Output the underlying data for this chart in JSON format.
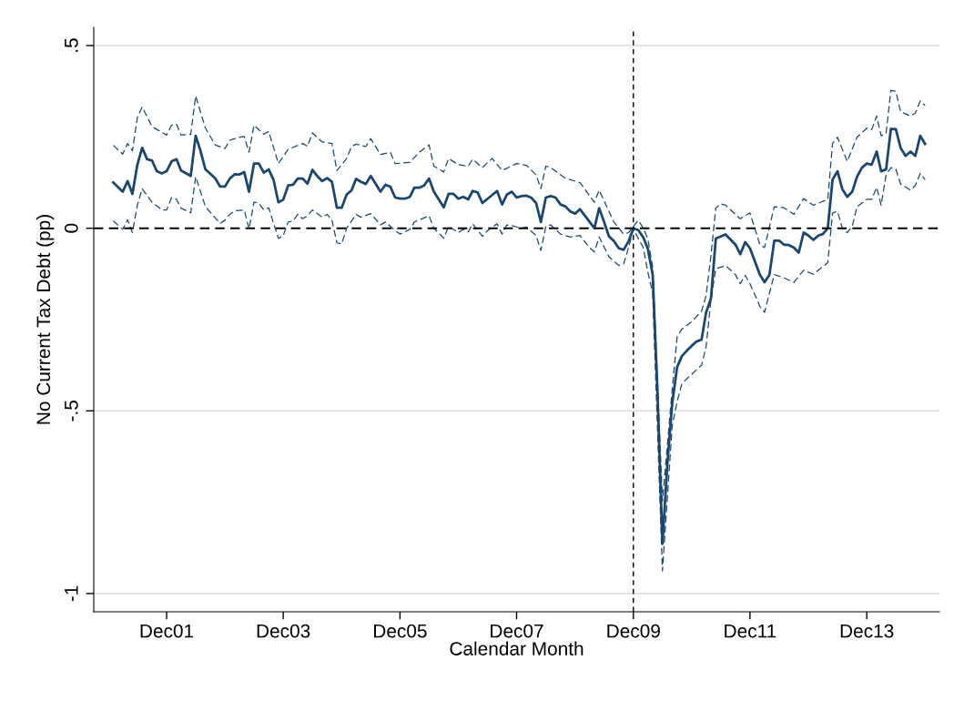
{
  "chart_data": {
    "type": "line",
    "xlabel": "Calendar Month",
    "ylabel": "No Current Tax Debt (pp)",
    "xlim": [
      "2000-09",
      "2015-03"
    ],
    "ylim": [
      -1.05,
      0.55
    ],
    "xticks": [
      {
        "value": "2001-12",
        "label": "Dec01"
      },
      {
        "value": "2003-12",
        "label": "Dec03"
      },
      {
        "value": "2005-12",
        "label": "Dec05"
      },
      {
        "value": "2007-12",
        "label": "Dec07"
      },
      {
        "value": "2009-12",
        "label": "Dec09"
      },
      {
        "value": "2011-12",
        "label": "Dec11"
      },
      {
        "value": "2013-12",
        "label": "Dec13"
      }
    ],
    "yticks": [
      {
        "value": -1,
        "label": "-1"
      },
      {
        "value": -0.5,
        "label": "-.5"
      },
      0,
      {
        "value": 0.5,
        "label": ".5"
      }
    ],
    "grid": "y",
    "legend": false,
    "ref_lines": [
      {
        "axis": "y",
        "value": 0,
        "color": "#000000",
        "line_style": "dashed"
      },
      {
        "axis": "x",
        "value": "2009-12",
        "color": "#000000",
        "line_style": "dashed"
      }
    ],
    "series": [
      {
        "color": "#1a476f",
        "line_style": "solid",
        "x": [
          "2001-01",
          "2001-03",
          "2001-04",
          "2001-05",
          "2001-06",
          "2001-07",
          "2001-08",
          "2001-09",
          "2001-10",
          "2001-11",
          "2001-12",
          "2002-01",
          "2002-02",
          "2002-03",
          "2002-05",
          "2002-06",
          "2002-07",
          "2002-08",
          "2002-10",
          "2002-11",
          "2002-12",
          "2003-01",
          "2003-02",
          "2003-03",
          "2003-04",
          "2003-05",
          "2003-06",
          "2003-07",
          "2003-08",
          "2003-09",
          "2003-10",
          "2003-11",
          "2003-12",
          "2004-01",
          "2004-02",
          "2004-03",
          "2004-04",
          "2004-05",
          "2004-06",
          "2004-07",
          "2004-08",
          "2004-09",
          "2004-10",
          "2004-11",
          "2004-12",
          "2005-01",
          "2005-02",
          "2005-03",
          "2005-04",
          "2005-05",
          "2005-06",
          "2005-08",
          "2005-09",
          "2005-10",
          "2005-11",
          "2005-12",
          "2006-01",
          "2006-02",
          "2006-03",
          "2006-04",
          "2006-05",
          "2006-06",
          "2006-07",
          "2006-09",
          "2006-10",
          "2006-11",
          "2006-12",
          "2007-01",
          "2007-02",
          "2007-03",
          "2007-04",
          "2007-05",
          "2007-08",
          "2007-09",
          "2007-10",
          "2007-11",
          "2007-12",
          "2008-01",
          "2008-02",
          "2008-03",
          "2008-04",
          "2008-05",
          "2008-06",
          "2008-07",
          "2008-08",
          "2008-09",
          "2008-10",
          "2008-11",
          "2008-12",
          "2009-01",
          "2009-04",
          "2009-05",
          "2009-06",
          "2009-07",
          "2009-08",
          "2009-09",
          "2009-10",
          "2009-11",
          "2009-12",
          "2010-01",
          "2010-02",
          "2010-03",
          "2010-04",
          "2010-05",
          "2010-06",
          "2010-07",
          "2010-08",
          "2010-09",
          "2010-10",
          "2010-11",
          "2010-12",
          "2011-01",
          "2011-02",
          "2011-03",
          "2011-04",
          "2011-05",
          "2011-07",
          "2011-09",
          "2011-10",
          "2011-11",
          "2011-12",
          "2012-02",
          "2012-03",
          "2012-04",
          "2012-05",
          "2012-06",
          "2012-07",
          "2012-08",
          "2012-09",
          "2012-10",
          "2012-11",
          "2012-12",
          "2013-01",
          "2013-02",
          "2013-03",
          "2013-04",
          "2013-05",
          "2013-06",
          "2013-07",
          "2013-08",
          "2013-09",
          "2013-10",
          "2013-11",
          "2013-12",
          "2014-01",
          "2014-02",
          "2014-03",
          "2014-04",
          "2014-05",
          "2014-06",
          "2014-07",
          "2014-08",
          "2014-09",
          "2014-10",
          "2014-11",
          "2014-12"
        ],
        "values": [
          0.125,
          0.1,
          0.129,
          0.094,
          0.174,
          0.22,
          0.189,
          0.185,
          0.156,
          0.15,
          0.156,
          0.183,
          0.189,
          0.158,
          0.143,
          0.253,
          0.212,
          0.161,
          0.137,
          0.114,
          0.114,
          0.136,
          0.148,
          0.147,
          0.154,
          0.1,
          0.177,
          0.177,
          0.152,
          0.161,
          0.133,
          0.071,
          0.078,
          0.117,
          0.119,
          0.136,
          0.136,
          0.122,
          0.16,
          0.143,
          0.129,
          0.137,
          0.127,
          0.056,
          0.056,
          0.092,
          0.104,
          0.135,
          0.127,
          0.121,
          0.143,
          0.1,
          0.119,
          0.114,
          0.084,
          0.081,
          0.081,
          0.086,
          0.111,
          0.111,
          0.117,
          0.136,
          0.1,
          0.057,
          0.094,
          0.094,
          0.081,
          0.086,
          0.079,
          0.102,
          0.098,
          0.069,
          0.102,
          0.065,
          0.092,
          0.1,
          0.084,
          0.088,
          0.089,
          0.084,
          0.069,
          0.017,
          0.084,
          0.088,
          0.084,
          0.065,
          0.06,
          0.046,
          0.04,
          0.052,
          0,
          0.055,
          0.017,
          -0.022,
          -0.035,
          -0.055,
          -0.059,
          -0.036,
          0,
          -0.005,
          -0.025,
          -0.055,
          -0.127,
          -0.45,
          -0.864,
          -0.65,
          -0.48,
          -0.38,
          -0.35,
          -0.335,
          -0.322,
          -0.31,
          -0.305,
          -0.231,
          -0.192,
          -0.028,
          -0.017,
          -0.045,
          -0.071,
          -0.038,
          -0.055,
          -0.127,
          -0.148,
          -0.127,
          -0.034,
          -0.034,
          -0.045,
          -0.046,
          -0.053,
          -0.067,
          -0.012,
          -0.02,
          -0.032,
          -0.02,
          -0.016,
          0,
          0.133,
          0.156,
          0.107,
          0.086,
          0.1,
          0.141,
          0.166,
          0.177,
          0.174,
          0.21,
          0.156,
          0.161,
          0.272,
          0.271,
          0.22,
          0.198,
          0.21,
          0.198,
          0.253,
          0.231
        ]
      },
      {
        "color": "#1a476f",
        "line_style": "dashed",
        "x": [
          "2001-01",
          "2001-03",
          "2001-04",
          "2001-05",
          "2001-06",
          "2001-07",
          "2001-09",
          "2001-12",
          "2002-01",
          "2002-02",
          "2002-03",
          "2002-05",
          "2002-06",
          "2002-08",
          "2002-10",
          "2002-12",
          "2003-01",
          "2003-03",
          "2003-04",
          "2003-05",
          "2003-06",
          "2003-08",
          "2003-09",
          "2003-11",
          "2004-01",
          "2004-04",
          "2004-05",
          "2004-06",
          "2004-08",
          "2004-10",
          "2004-11",
          "2005-01",
          "2005-02",
          "2005-03",
          "2005-05",
          "2005-06",
          "2005-08",
          "2005-10",
          "2005-11",
          "2006-02",
          "2006-04",
          "2006-06",
          "2006-07",
          "2006-09",
          "2006-10",
          "2006-12",
          "2007-02",
          "2007-03",
          "2007-05",
          "2007-07",
          "2007-09",
          "2007-12",
          "2008-02",
          "2008-04",
          "2008-05",
          "2008-06",
          "2008-07",
          "2008-10",
          "2009-01",
          "2009-04",
          "2009-05",
          "2009-08",
          "2009-10",
          "2009-11",
          "2010-01",
          "2010-02",
          "2010-03",
          "2010-04",
          "2010-06",
          "2010-08",
          "2010-09",
          "2010-10",
          "2010-12",
          "2011-02",
          "2011-03",
          "2011-04",
          "2011-05",
          "2011-06",
          "2011-07",
          "2011-10",
          "2011-12",
          "2012-02",
          "2012-03",
          "2012-05",
          "2012-07",
          "2012-09",
          "2012-11",
          "2013-01",
          "2013-04",
          "2013-05",
          "2013-06",
          "2013-08",
          "2013-10",
          "2013-12",
          "2014-01",
          "2014-02",
          "2014-03",
          "2014-04",
          "2014-05",
          "2014-06",
          "2014-07",
          "2014-09",
          "2014-10",
          "2014-11",
          "2014-12"
        ],
        "values": [
          0.227,
          0.203,
          0.232,
          0.212,
          0.303,
          0.332,
          0.278,
          0.255,
          0.282,
          0.285,
          0.255,
          0.257,
          0.362,
          0.274,
          0.228,
          0.218,
          0.241,
          0.249,
          0.251,
          0.208,
          0.282,
          0.257,
          0.265,
          0.177,
          0.216,
          0.232,
          0.224,
          0.261,
          0.236,
          0.232,
          0.158,
          0.191,
          0.224,
          0.23,
          0.224,
          0.245,
          0.202,
          0.208,
          0.177,
          0.18,
          0.208,
          0.228,
          0.17,
          0.154,
          0.191,
          0.174,
          0.17,
          0.189,
          0.166,
          0.191,
          0.158,
          0.177,
          0.172,
          0.146,
          0.108,
          0.17,
          0.166,
          0.137,
          0.125,
          0.071,
          0.104,
          0.017,
          -0.016,
          -0.012,
          0.022,
          0,
          -0.028,
          -0.107,
          -0.747,
          -0.442,
          -0.297,
          -0.276,
          -0.256,
          -0.227,
          -0.185,
          -0.074,
          0.055,
          0.067,
          0.063,
          0.026,
          0.042,
          -0.045,
          -0.053,
          0.059,
          0.056,
          0.038,
          0.081,
          0.063,
          0.079,
          0.232,
          0.249,
          0.183,
          0.249,
          0.274,
          0.27,
          0.307,
          0.253,
          0.26,
          0.377,
          0.375,
          0.319,
          0.307,
          0.315,
          0.348,
          0.336
        ]
      },
      {
        "color": "#1a476f",
        "line_style": "dashed",
        "x": [
          "2001-01",
          "2001-03",
          "2001-04",
          "2001-05",
          "2001-06",
          "2001-07",
          "2001-09",
          "2001-11",
          "2001-12",
          "2002-01",
          "2002-02",
          "2002-03",
          "2002-05",
          "2002-06",
          "2002-08",
          "2002-11",
          "2002-12",
          "2003-01",
          "2003-02",
          "2003-04",
          "2003-05",
          "2003-06",
          "2003-07",
          "2003-08",
          "2003-09",
          "2003-11",
          "2003-12",
          "2004-01",
          "2004-02",
          "2004-03",
          "2004-04",
          "2004-05",
          "2004-06",
          "2004-08",
          "2004-09",
          "2004-10",
          "2004-11",
          "2004-12",
          "2005-01",
          "2005-03",
          "2005-04",
          "2005-06",
          "2005-08",
          "2005-09",
          "2005-11",
          "2005-12",
          "2006-02",
          "2006-03",
          "2006-06",
          "2006-07",
          "2006-09",
          "2006-10",
          "2006-12",
          "2007-01",
          "2007-02",
          "2007-03",
          "2007-05",
          "2007-06",
          "2007-08",
          "2007-09",
          "2007-10",
          "2007-11",
          "2008-01",
          "2008-02",
          "2008-04",
          "2008-05",
          "2008-06",
          "2008-07",
          "2008-09",
          "2008-11",
          "2009-01",
          "2009-03",
          "2009-04",
          "2009-05",
          "2009-07",
          "2009-09",
          "2009-10",
          "2009-11",
          "2009-12",
          "2010-02",
          "2010-03",
          "2010-04",
          "2010-06",
          "2010-08",
          "2010-09",
          "2010-10",
          "2010-12",
          "2011-02",
          "2011-03",
          "2011-04",
          "2011-05",
          "2011-07",
          "2011-09",
          "2011-10",
          "2011-11",
          "2011-12",
          "2012-02",
          "2012-03",
          "2012-05",
          "2012-07",
          "2012-09",
          "2012-11",
          "2013-01",
          "2013-04",
          "2013-05",
          "2013-06",
          "2013-07",
          "2013-08",
          "2013-09",
          "2013-10",
          "2013-12",
          "2014-01",
          "2014-02",
          "2014-03",
          "2014-04",
          "2014-05",
          "2014-06",
          "2014-07",
          "2014-09",
          "2014-10",
          "2014-11",
          "2014-12"
        ],
        "values": [
          0.02,
          -0.003,
          0.023,
          -0.012,
          0.063,
          0.108,
          0.071,
          0.05,
          0.05,
          0.084,
          0.079,
          0.055,
          0.042,
          0.141,
          0.059,
          0.013,
          0.022,
          0.038,
          0.048,
          0.05,
          -0.002,
          0.071,
          0.069,
          0.05,
          0.056,
          -0.028,
          -0.02,
          0.017,
          0.02,
          0.038,
          0.026,
          0.034,
          0.05,
          0.03,
          0.038,
          0.022,
          -0.04,
          -0.043,
          0,
          0.038,
          0.03,
          0.04,
          0.009,
          0.017,
          -0.007,
          -0.016,
          -0.003,
          0.017,
          0.034,
          0,
          -0.027,
          0.005,
          -0.012,
          -0.003,
          -0.01,
          0.012,
          -0.022,
          -0.007,
          0.012,
          -0.016,
          0.009,
          0.007,
          0,
          0.003,
          -0.02,
          -0.061,
          0.005,
          0.009,
          -0.016,
          -0.024,
          -0.02,
          -0.053,
          -0.065,
          -0.024,
          -0.078,
          -0.102,
          -0.098,
          -0.053,
          -0.003,
          -0.053,
          -0.119,
          -0.177,
          -0.938,
          -0.541,
          -0.475,
          -0.425,
          -0.4,
          -0.375,
          -0.326,
          -0.194,
          -0.111,
          -0.102,
          -0.127,
          -0.152,
          -0.129,
          -0.152,
          -0.214,
          -0.23,
          -0.127,
          -0.136,
          -0.148,
          -0.115,
          -0.126,
          -0.094,
          0.042,
          0.046,
          0,
          -0.012,
          0.005,
          0.059,
          0.079,
          0.079,
          0.112,
          0.063,
          0.146,
          0.166,
          0.162,
          0.121,
          0.104,
          0.117,
          0.15,
          0.133
        ]
      }
    ]
  }
}
